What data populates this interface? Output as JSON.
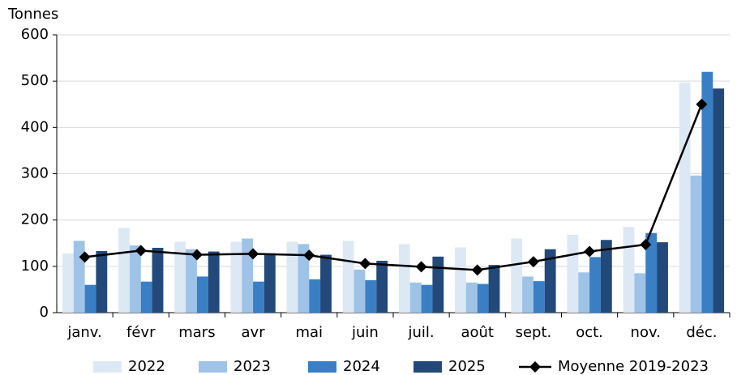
{
  "chart_data": {
    "type": "bar",
    "y_label": "Tonnes",
    "categories": [
      "janv.",
      "févr",
      "mars",
      "avr",
      "mai",
      "juin",
      "juil.",
      "août",
      "sept.",
      "oct.",
      "nov.",
      "déc."
    ],
    "series": [
      {
        "name": "2022",
        "color": "#dde8f5",
        "values": [
          128,
          183,
          153,
          153,
          153,
          155,
          148,
          141,
          160,
          168,
          185,
          497
        ]
      },
      {
        "name": "2023",
        "color": "#9fc3e7",
        "values": [
          155,
          145,
          137,
          160,
          148,
          93,
          65,
          65,
          78,
          87,
          85,
          296
        ]
      },
      {
        "name": "2024",
        "color": "#3a7fc4",
        "values": [
          60,
          67,
          78,
          67,
          72,
          70,
          60,
          62,
          68,
          120,
          172,
          520
        ]
      },
      {
        "name": "2025",
        "color": "#22497a",
        "values": [
          133,
          140,
          132,
          128,
          125,
          112,
          121,
          103,
          137,
          157,
          152,
          484
        ]
      },
      {
        "name": "Moyenne 2019-2023",
        "type": "line",
        "color": "#000000",
        "values": [
          120,
          134,
          125,
          127,
          124,
          106,
          99,
          92,
          110,
          132,
          147,
          450
        ]
      }
    ],
    "ylim": [
      0,
      600
    ],
    "yticks": [
      0,
      100,
      200,
      300,
      400,
      500,
      600
    ],
    "grid": true
  }
}
